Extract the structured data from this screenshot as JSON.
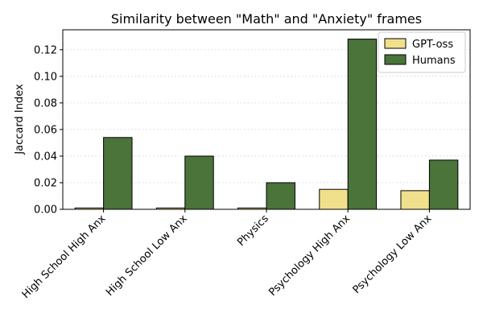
{
  "chart_data": {
    "type": "bar",
    "title": "Similarity between \"Math\" and \"Anxiety\" frames",
    "xlabel": "",
    "ylabel": "Jaccard Index",
    "categories": [
      "High School High Anx",
      "High School Low Anx",
      "Physics",
      "Psychology High Anx",
      "Psychology Low Anx"
    ],
    "series": [
      {
        "name": "GPT-oss",
        "color": "#f0e08c",
        "values": [
          0.001,
          0.001,
          0.001,
          0.015,
          0.014
        ]
      },
      {
        "name": "Humans",
        "color": "#4a743a",
        "values": [
          0.054,
          0.04,
          0.02,
          0.128,
          0.037
        ]
      }
    ],
    "ylim": [
      0,
      0.135
    ],
    "yticks": [
      "0.00",
      "0.02",
      "0.04",
      "0.06",
      "0.08",
      "0.10",
      "0.12"
    ],
    "grid": "y-dotted",
    "legend_position": "top-right"
  }
}
